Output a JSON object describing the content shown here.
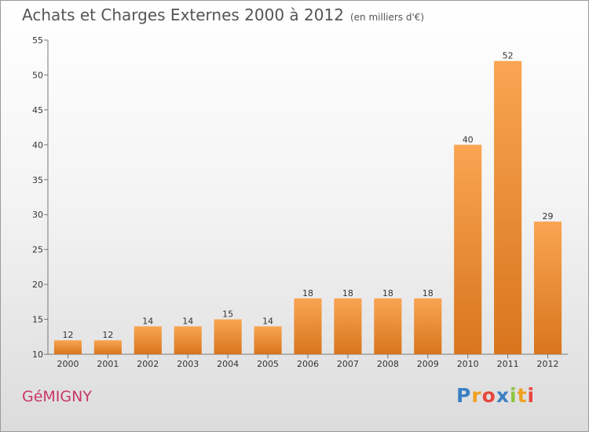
{
  "header": {
    "title": "Achats et Charges Externes 2000 à 2012",
    "subtitle": "(en milliers d'€)"
  },
  "footer": {
    "place": "GéMIGNY",
    "logo_letters": [
      "P",
      "r",
      "o",
      "x",
      "i",
      "t",
      "i"
    ],
    "logo_colors": [
      "#3b7fc4",
      "#f0a020",
      "#e8463c",
      "#3b7fc4",
      "#8cc63f",
      "#f0a020",
      "#e8463c"
    ]
  },
  "chart_data": {
    "type": "bar",
    "categories": [
      "2000",
      "2001",
      "2002",
      "2003",
      "2004",
      "2005",
      "2006",
      "2007",
      "2008",
      "2009",
      "2010",
      "2011",
      "2012"
    ],
    "values": [
      12,
      12,
      14,
      14,
      15,
      14,
      18,
      18,
      18,
      18,
      40,
      52,
      29
    ],
    "ylim": [
      10,
      55
    ],
    "yticks": [
      10,
      15,
      20,
      25,
      30,
      35,
      40,
      45,
      50,
      55
    ],
    "grid": false,
    "bar_color_top": "#f9a552",
    "bar_color_bottom": "#d8751d"
  }
}
